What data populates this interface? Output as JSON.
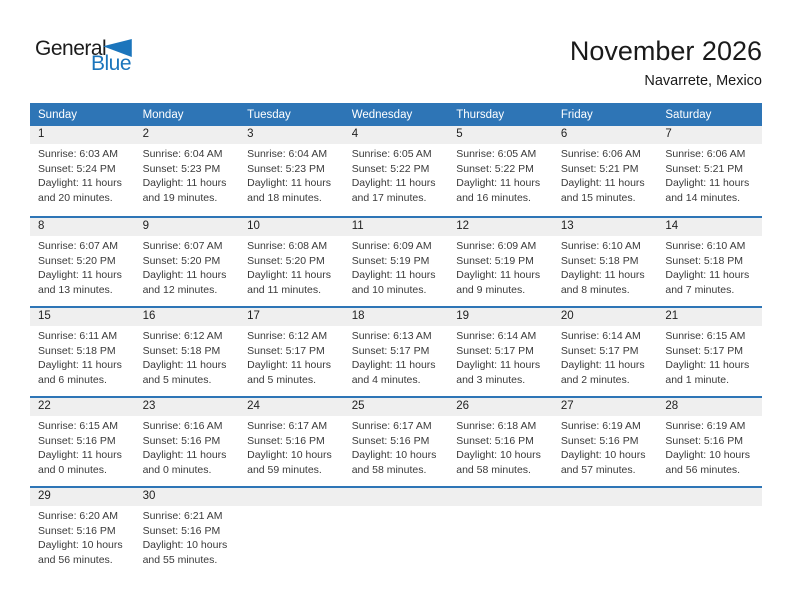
{
  "logo": {
    "general": "General",
    "blue": "Blue",
    "blue_hex": "#1b75bc"
  },
  "header": {
    "title": "November 2026",
    "subtitle": "Navarrete, Mexico"
  },
  "colors": {
    "header_blue": "#2e75b6",
    "band_gray": "#efefef"
  },
  "calendar": {
    "weekdays": [
      "Sunday",
      "Monday",
      "Tuesday",
      "Wednesday",
      "Thursday",
      "Friday",
      "Saturday"
    ],
    "weeks": [
      [
        {
          "day": "1",
          "sunrise": "Sunrise: 6:03 AM",
          "sunset": "Sunset: 5:24 PM",
          "daylight1": "Daylight: 11 hours",
          "daylight2": "and 20 minutes."
        },
        {
          "day": "2",
          "sunrise": "Sunrise: 6:04 AM",
          "sunset": "Sunset: 5:23 PM",
          "daylight1": "Daylight: 11 hours",
          "daylight2": "and 19 minutes."
        },
        {
          "day": "3",
          "sunrise": "Sunrise: 6:04 AM",
          "sunset": "Sunset: 5:23 PM",
          "daylight1": "Daylight: 11 hours",
          "daylight2": "and 18 minutes."
        },
        {
          "day": "4",
          "sunrise": "Sunrise: 6:05 AM",
          "sunset": "Sunset: 5:22 PM",
          "daylight1": "Daylight: 11 hours",
          "daylight2": "and 17 minutes."
        },
        {
          "day": "5",
          "sunrise": "Sunrise: 6:05 AM",
          "sunset": "Sunset: 5:22 PM",
          "daylight1": "Daylight: 11 hours",
          "daylight2": "and 16 minutes."
        },
        {
          "day": "6",
          "sunrise": "Sunrise: 6:06 AM",
          "sunset": "Sunset: 5:21 PM",
          "daylight1": "Daylight: 11 hours",
          "daylight2": "and 15 minutes."
        },
        {
          "day": "7",
          "sunrise": "Sunrise: 6:06 AM",
          "sunset": "Sunset: 5:21 PM",
          "daylight1": "Daylight: 11 hours",
          "daylight2": "and 14 minutes."
        }
      ],
      [
        {
          "day": "8",
          "sunrise": "Sunrise: 6:07 AM",
          "sunset": "Sunset: 5:20 PM",
          "daylight1": "Daylight: 11 hours",
          "daylight2": "and 13 minutes."
        },
        {
          "day": "9",
          "sunrise": "Sunrise: 6:07 AM",
          "sunset": "Sunset: 5:20 PM",
          "daylight1": "Daylight: 11 hours",
          "daylight2": "and 12 minutes."
        },
        {
          "day": "10",
          "sunrise": "Sunrise: 6:08 AM",
          "sunset": "Sunset: 5:20 PM",
          "daylight1": "Daylight: 11 hours",
          "daylight2": "and 11 minutes."
        },
        {
          "day": "11",
          "sunrise": "Sunrise: 6:09 AM",
          "sunset": "Sunset: 5:19 PM",
          "daylight1": "Daylight: 11 hours",
          "daylight2": "and 10 minutes."
        },
        {
          "day": "12",
          "sunrise": "Sunrise: 6:09 AM",
          "sunset": "Sunset: 5:19 PM",
          "daylight1": "Daylight: 11 hours",
          "daylight2": "and 9 minutes."
        },
        {
          "day": "13",
          "sunrise": "Sunrise: 6:10 AM",
          "sunset": "Sunset: 5:18 PM",
          "daylight1": "Daylight: 11 hours",
          "daylight2": "and 8 minutes."
        },
        {
          "day": "14",
          "sunrise": "Sunrise: 6:10 AM",
          "sunset": "Sunset: 5:18 PM",
          "daylight1": "Daylight: 11 hours",
          "daylight2": "and 7 minutes."
        }
      ],
      [
        {
          "day": "15",
          "sunrise": "Sunrise: 6:11 AM",
          "sunset": "Sunset: 5:18 PM",
          "daylight1": "Daylight: 11 hours",
          "daylight2": "and 6 minutes."
        },
        {
          "day": "16",
          "sunrise": "Sunrise: 6:12 AM",
          "sunset": "Sunset: 5:18 PM",
          "daylight1": "Daylight: 11 hours",
          "daylight2": "and 5 minutes."
        },
        {
          "day": "17",
          "sunrise": "Sunrise: 6:12 AM",
          "sunset": "Sunset: 5:17 PM",
          "daylight1": "Daylight: 11 hours",
          "daylight2": "and 5 minutes."
        },
        {
          "day": "18",
          "sunrise": "Sunrise: 6:13 AM",
          "sunset": "Sunset: 5:17 PM",
          "daylight1": "Daylight: 11 hours",
          "daylight2": "and 4 minutes."
        },
        {
          "day": "19",
          "sunrise": "Sunrise: 6:14 AM",
          "sunset": "Sunset: 5:17 PM",
          "daylight1": "Daylight: 11 hours",
          "daylight2": "and 3 minutes."
        },
        {
          "day": "20",
          "sunrise": "Sunrise: 6:14 AM",
          "sunset": "Sunset: 5:17 PM",
          "daylight1": "Daylight: 11 hours",
          "daylight2": "and 2 minutes."
        },
        {
          "day": "21",
          "sunrise": "Sunrise: 6:15 AM",
          "sunset": "Sunset: 5:17 PM",
          "daylight1": "Daylight: 11 hours",
          "daylight2": "and 1 minute."
        }
      ],
      [
        {
          "day": "22",
          "sunrise": "Sunrise: 6:15 AM",
          "sunset": "Sunset: 5:16 PM",
          "daylight1": "Daylight: 11 hours",
          "daylight2": "and 0 minutes."
        },
        {
          "day": "23",
          "sunrise": "Sunrise: 6:16 AM",
          "sunset": "Sunset: 5:16 PM",
          "daylight1": "Daylight: 11 hours",
          "daylight2": "and 0 minutes."
        },
        {
          "day": "24",
          "sunrise": "Sunrise: 6:17 AM",
          "sunset": "Sunset: 5:16 PM",
          "daylight1": "Daylight: 10 hours",
          "daylight2": "and 59 minutes."
        },
        {
          "day": "25",
          "sunrise": "Sunrise: 6:17 AM",
          "sunset": "Sunset: 5:16 PM",
          "daylight1": "Daylight: 10 hours",
          "daylight2": "and 58 minutes."
        },
        {
          "day": "26",
          "sunrise": "Sunrise: 6:18 AM",
          "sunset": "Sunset: 5:16 PM",
          "daylight1": "Daylight: 10 hours",
          "daylight2": "and 58 minutes."
        },
        {
          "day": "27",
          "sunrise": "Sunrise: 6:19 AM",
          "sunset": "Sunset: 5:16 PM",
          "daylight1": "Daylight: 10 hours",
          "daylight2": "and 57 minutes."
        },
        {
          "day": "28",
          "sunrise": "Sunrise: 6:19 AM",
          "sunset": "Sunset: 5:16 PM",
          "daylight1": "Daylight: 10 hours",
          "daylight2": "and 56 minutes."
        }
      ],
      [
        {
          "day": "29",
          "sunrise": "Sunrise: 6:20 AM",
          "sunset": "Sunset: 5:16 PM",
          "daylight1": "Daylight: 10 hours",
          "daylight2": "and 56 minutes."
        },
        {
          "day": "30",
          "sunrise": "Sunrise: 6:21 AM",
          "sunset": "Sunset: 5:16 PM",
          "daylight1": "Daylight: 10 hours",
          "daylight2": "and 55 minutes."
        },
        null,
        null,
        null,
        null,
        null
      ]
    ]
  }
}
